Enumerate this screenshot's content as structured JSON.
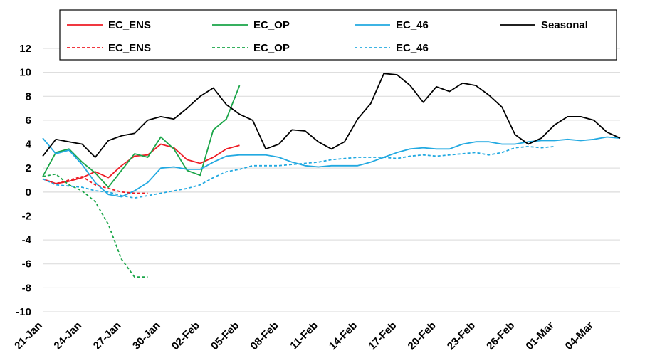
{
  "chart_data": {
    "type": "line",
    "title": "",
    "xlabel": "",
    "ylabel": "",
    "ylim": [
      -10,
      12
    ],
    "yticks": [
      12,
      10,
      8,
      6,
      4,
      2,
      0,
      -2,
      -4,
      -6,
      -8,
      -10
    ],
    "x_start_day": 21,
    "x_end_day": 65,
    "x_tick_days": [
      21,
      24,
      27,
      30,
      33,
      36,
      39,
      42,
      45,
      48,
      51,
      54,
      57,
      60,
      63
    ],
    "x_tick_labels": [
      "21-Jan",
      "24-Jan",
      "27-Jan",
      "30-Jan",
      "02-Feb",
      "05-Feb",
      "08-Feb",
      "11-Feb",
      "14-Feb",
      "17-Feb",
      "20-Feb",
      "23-Feb",
      "26-Feb",
      "01-Mar",
      "04-Mar"
    ],
    "grid": true,
    "legend_position": "top",
    "series": [
      {
        "name": "EC_ENS",
        "color": "#ee1c25",
        "dash": false,
        "start_day": 21,
        "values": [
          1.1,
          0.7,
          0.9,
          1.2,
          1.7,
          1.2,
          2.2,
          3.0,
          3.1,
          4.0,
          3.7,
          2.7,
          2.4,
          2.9,
          3.6,
          3.9
        ]
      },
      {
        "name": "EC_OP",
        "color": "#1aa548",
        "dash": false,
        "start_day": 21,
        "values": [
          1.3,
          3.3,
          3.6,
          2.5,
          1.6,
          0.4,
          1.8,
          3.2,
          2.9,
          4.6,
          3.6,
          1.8,
          1.4,
          5.2,
          6.1,
          8.9
        ]
      },
      {
        "name": "EC_46",
        "color": "#22a9e1",
        "dash": false,
        "start_day": 21,
        "values": [
          4.5,
          3.2,
          3.5,
          2.3,
          0.8,
          -0.2,
          -0.4,
          0.1,
          0.8,
          2.0,
          2.1,
          1.9,
          1.9,
          2.5,
          3.0,
          3.1,
          3.1,
          3.1,
          2.9,
          2.5,
          2.2,
          2.1,
          2.2,
          2.2,
          2.2,
          2.5,
          2.9,
          3.3,
          3.6,
          3.7,
          3.6,
          3.6,
          4.0,
          4.2,
          4.2,
          4.0,
          4.0,
          4.2,
          4.3,
          4.3,
          4.4,
          4.3,
          4.4,
          4.6,
          4.5
        ]
      },
      {
        "name": "Seasonal",
        "color": "#000000",
        "dash": false,
        "start_day": 21,
        "values": [
          3.0,
          4.4,
          4.2,
          4.0,
          2.9,
          4.3,
          4.7,
          4.9,
          6.0,
          6.3,
          6.1,
          7.0,
          8.0,
          8.7,
          7.3,
          6.5,
          6.0,
          3.6,
          4.0,
          5.2,
          5.1,
          4.2,
          3.6,
          4.2,
          6.1,
          7.4,
          9.9,
          9.8,
          8.9,
          7.5,
          8.8,
          8.4,
          9.1,
          8.9,
          8.1,
          7.1,
          4.8,
          4.0,
          4.5,
          5.6,
          6.3,
          6.3,
          6.0,
          5.0,
          4.5
        ]
      },
      {
        "name": "EC_ENS",
        "color": "#ee1c25",
        "dash": true,
        "start_day": 21,
        "values": [
          1.1,
          0.7,
          1.0,
          1.3,
          0.6,
          0.3,
          0.0,
          -0.1,
          -0.1
        ]
      },
      {
        "name": "EC_OP",
        "color": "#1aa548",
        "dash": true,
        "start_day": 21,
        "values": [
          1.3,
          1.5,
          0.6,
          0.1,
          -0.8,
          -2.7,
          -5.6,
          -7.1,
          -7.1
        ]
      },
      {
        "name": "EC_46",
        "color": "#22a9e1",
        "dash": true,
        "start_day": 21,
        "values": [
          1.1,
          0.6,
          0.5,
          0.4,
          0.1,
          0.0,
          -0.3,
          -0.5,
          -0.3,
          -0.1,
          0.1,
          0.3,
          0.6,
          1.2,
          1.7,
          1.9,
          2.2,
          2.2,
          2.2,
          2.3,
          2.4,
          2.5,
          2.7,
          2.8,
          2.9,
          2.9,
          2.9,
          2.8,
          3.0,
          3.1,
          3.0,
          3.1,
          3.2,
          3.3,
          3.1,
          3.3,
          3.7,
          3.8,
          3.7,
          3.8
        ]
      }
    ]
  }
}
